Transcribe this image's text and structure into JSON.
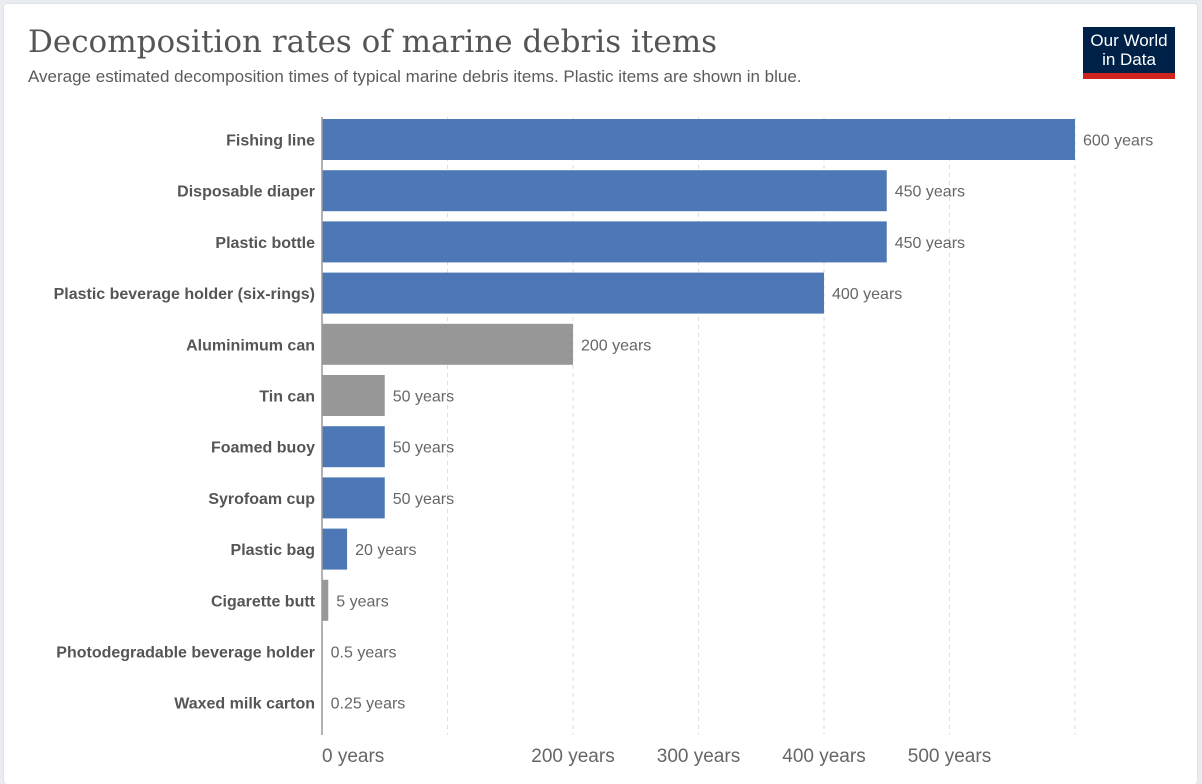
{
  "header": {
    "title": "Decomposition rates of marine debris items",
    "subtitle": "Average estimated decomposition times of typical marine debris items. Plastic items are shown in blue.",
    "logo_line1": "Our World",
    "logo_line2": "in Data"
  },
  "colors": {
    "plastic": "#4e77b5",
    "non_plastic": "#979797",
    "logo_bg": "#002147",
    "logo_accent": "#ce261e"
  },
  "chart_data": {
    "type": "bar",
    "orientation": "horizontal",
    "title": "Decomposition rates of marine debris items",
    "subtitle": "Average estimated decomposition times of typical marine debris items. Plastic items are shown in blue.",
    "xlabel": "",
    "ylabel": "",
    "unit": "years",
    "xlim": [
      0,
      600
    ],
    "grid": true,
    "gridlines": [
      0,
      100,
      200,
      300,
      400,
      500,
      600
    ],
    "tick_labels": [
      {
        "value": 0,
        "label": "0 years"
      },
      {
        "value": 200,
        "label": "200 years"
      },
      {
        "value": 300,
        "label": "300 years"
      },
      {
        "value": 400,
        "label": "400 years"
      },
      {
        "value": 500,
        "label": "500 years"
      }
    ],
    "categories": [
      "Fishing line",
      "Disposable diaper",
      "Plastic bottle",
      "Plastic beverage holder (six-rings)",
      "Aluminimum can",
      "Tin can",
      "Foamed buoy",
      "Syrofoam cup",
      "Plastic bag",
      "Cigarette butt",
      "Photodegradable beverage holder",
      "Waxed milk carton"
    ],
    "values": [
      600,
      450,
      450,
      400,
      200,
      50,
      50,
      50,
      20,
      5,
      0.5,
      0.25
    ],
    "value_labels": [
      "600 years",
      "450 years",
      "450 years",
      "400 years",
      "200 years",
      "50 years",
      "50 years",
      "50 years",
      "20 years",
      "5 years",
      "0.5 years",
      "0.25 years"
    ],
    "is_plastic": [
      true,
      true,
      true,
      true,
      false,
      false,
      true,
      true,
      true,
      false,
      true,
      false
    ],
    "legend": "none"
  }
}
